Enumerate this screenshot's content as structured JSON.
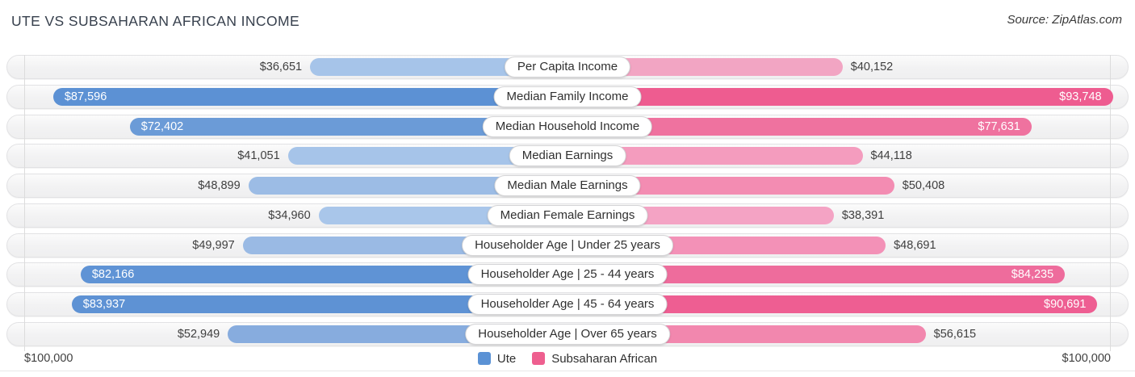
{
  "header": {
    "title": "UTE VS SUBSAHARAN AFRICAN INCOME",
    "source": "Source: ZipAtlas.com"
  },
  "axis": {
    "left_label": "$100,000",
    "right_label": "$100,000",
    "max": 100000
  },
  "legend": [
    {
      "label": "Ute",
      "color": "#5b92d5"
    },
    {
      "label": "Subsaharan African",
      "color": "#ee5f8f"
    }
  ],
  "chart_data": {
    "type": "bar",
    "subtype": "diverging-horizontal-butterfly",
    "title": "UTE VS SUBSAHARAN AFRICAN INCOME",
    "axis_max": 100000,
    "xlim": [
      -100000,
      100000
    ],
    "categories": [
      "Per Capita Income",
      "Median Family Income",
      "Median Household Income",
      "Median Earnings",
      "Median Male Earnings",
      "Median Female Earnings",
      "Householder Age | Under 25 years",
      "Householder Age | 25 - 44 years",
      "Householder Age | 45 - 64 years",
      "Householder Age | Over 65 years"
    ],
    "series": [
      {
        "name": "Ute",
        "side": "left",
        "values": [
          36651,
          87596,
          72402,
          41051,
          48899,
          34960,
          49997,
          82166,
          83937,
          52949
        ],
        "labels": [
          "$36,651",
          "$87,596",
          "$72,402",
          "$41,051",
          "$48,899",
          "$34,960",
          "$49,997",
          "$82,166",
          "$83,937",
          "$52,949"
        ],
        "colors": [
          "#a6c4e9",
          "#5c91d4",
          "#6b9bd7",
          "#a6c4e9",
          "#9cbce5",
          "#a9c6ea",
          "#9abae4",
          "#5f93d5",
          "#5e92d4",
          "#87acde"
        ]
      },
      {
        "name": "Subsaharan African",
        "side": "right",
        "values": [
          40152,
          93748,
          77631,
          44118,
          50408,
          38391,
          48691,
          84235,
          90691,
          56615
        ],
        "labels": [
          "$40,152",
          "$93,748",
          "$77,631",
          "$44,118",
          "$50,408",
          "$38,391",
          "$48,691",
          "$84,235",
          "$90,691",
          "$56,615"
        ],
        "colors": [
          "#f2a5c3",
          "#ee5c90",
          "#ef729f",
          "#f49cbe",
          "#f38cb2",
          "#f4a3c4",
          "#f391b7",
          "#ee6c9c",
          "#ee5e92",
          "#f287ae"
        ]
      }
    ],
    "value_label_inside_threshold": 60000,
    "grid": "vertical-end-lines-only",
    "legend_position": "bottom-center"
  }
}
